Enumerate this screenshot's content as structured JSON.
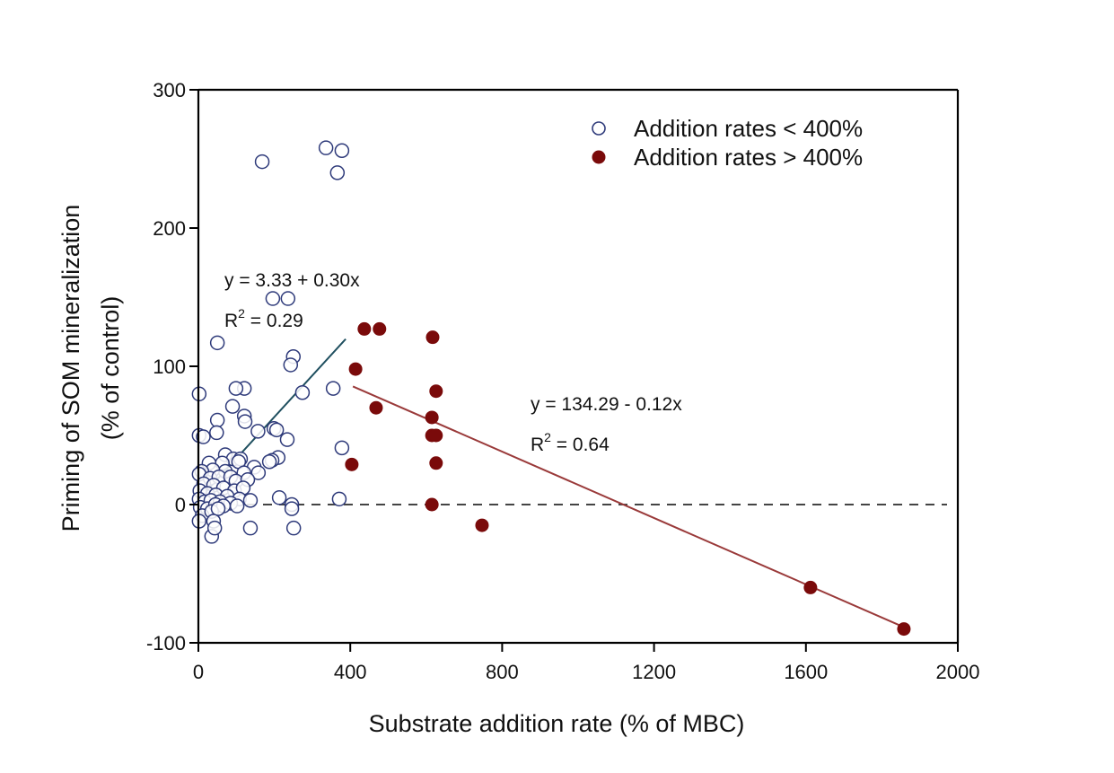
{
  "chart_data": {
    "type": "scatter",
    "title": "",
    "xlabel": "Substrate addition rate (% of MBC)",
    "ylabel_line1": "Priming of SOM mineralization",
    "ylabel_line2": "(% of control)",
    "xlim": [
      0,
      2000
    ],
    "ylim": [
      -100,
      300
    ],
    "xticks": [
      0,
      400,
      800,
      1200,
      1600,
      2000
    ],
    "yticks": [
      -100,
      0,
      100,
      200,
      300
    ],
    "xtick_labels": [
      "0",
      "400",
      "800",
      "1200",
      "1600",
      "2000"
    ],
    "ytick_labels": [
      "-100",
      "0",
      "100",
      "200",
      "300"
    ],
    "grid": false,
    "legend_position": "top-right",
    "reference_line": {
      "y": 0,
      "style": "dashed",
      "color": "#444444"
    },
    "series": [
      {
        "name": "Addition rates < 400%",
        "marker": "open-circle",
        "color": "#2e3a7a",
        "points": [
          [
            168,
            248
          ],
          [
            336,
            258
          ],
          [
            378,
            256
          ],
          [
            366,
            240
          ],
          [
            196,
            149
          ],
          [
            236,
            149
          ],
          [
            50,
            117
          ],
          [
            250,
            107
          ],
          [
            243,
            101
          ],
          [
            121,
            84
          ],
          [
            355,
            84
          ],
          [
            274,
            81
          ],
          [
            2,
            80
          ],
          [
            99,
            84
          ],
          [
            90,
            71
          ],
          [
            121,
            64
          ],
          [
            123,
            60
          ],
          [
            50,
            61
          ],
          [
            199,
            55
          ],
          [
            206,
            54
          ],
          [
            157,
            53
          ],
          [
            48,
            52
          ],
          [
            2,
            50
          ],
          [
            13,
            49
          ],
          [
            234,
            47
          ],
          [
            378,
            41
          ],
          [
            210,
            34
          ],
          [
            194,
            32
          ],
          [
            187,
            31
          ],
          [
            71,
            36
          ],
          [
            92,
            33
          ],
          [
            111,
            33
          ],
          [
            106,
            31
          ],
          [
            63,
            30
          ],
          [
            28,
            30
          ],
          [
            147,
            27
          ],
          [
            158,
            23
          ],
          [
            120,
            23
          ],
          [
            71,
            24
          ],
          [
            38,
            25
          ],
          [
            9,
            24
          ],
          [
            2,
            22
          ],
          [
            31,
            19
          ],
          [
            54,
            20
          ],
          [
            85,
            20
          ],
          [
            99,
            17
          ],
          [
            130,
            18
          ],
          [
            14,
            15
          ],
          [
            40,
            14
          ],
          [
            66,
            12
          ],
          [
            95,
            10
          ],
          [
            118,
            12
          ],
          [
            4,
            10
          ],
          [
            24,
            8
          ],
          [
            46,
            7
          ],
          [
            76,
            6
          ],
          [
            108,
            4
          ],
          [
            137,
            3
          ],
          [
            2,
            4
          ],
          [
            17,
            2
          ],
          [
            33,
            3
          ],
          [
            57,
            2
          ],
          [
            85,
            1
          ],
          [
            213,
            5
          ],
          [
            371,
            4
          ],
          [
            246,
            0
          ],
          [
            5,
            -2
          ],
          [
            24,
            -3
          ],
          [
            45,
            0
          ],
          [
            66,
            -1
          ],
          [
            102,
            -1
          ],
          [
            246,
            -3
          ],
          [
            10,
            -8
          ],
          [
            35,
            -5
          ],
          [
            52,
            -3
          ],
          [
            2,
            -12
          ],
          [
            40,
            -12
          ],
          [
            137,
            -17
          ],
          [
            251,
            -17
          ],
          [
            35,
            -23
          ],
          [
            43,
            -17
          ]
        ]
      },
      {
        "name": "Addition rates > 400%",
        "marker": "filled-circle",
        "color": "#7a0a0a",
        "points": [
          [
            414,
            98
          ],
          [
            437,
            127
          ],
          [
            477,
            127
          ],
          [
            404,
            29
          ],
          [
            468,
            70
          ],
          [
            617,
            121
          ],
          [
            626,
            82
          ],
          [
            615,
            63
          ],
          [
            615,
            50
          ],
          [
            626,
            50
          ],
          [
            626,
            30
          ],
          [
            615,
            0
          ],
          [
            747,
            -15
          ],
          [
            1612,
            -60
          ],
          [
            1858,
            -90
          ]
        ]
      }
    ],
    "regressions": [
      {
        "series": "Addition rates < 400%",
        "intercept": 3.33,
        "slope": 0.3,
        "x_range": [
          0,
          388
        ],
        "color": "#1f4f5f",
        "equation_label": "y = 3.33 + 0.30x",
        "r2_prefix": "R",
        "r2_sup": "2",
        "r2_value": " = 0.29"
      },
      {
        "series": "Addition rates > 400%",
        "intercept": 134.29,
        "slope": -0.12,
        "x_range": [
          407,
          1858
        ],
        "color": "#9a3a3a",
        "equation_label": "y = 134.29 - 0.12x",
        "r2_prefix": "R",
        "r2_sup": "2",
        "r2_value": " = 0.64"
      }
    ],
    "legend": [
      {
        "label": "Addition rates < 400%",
        "marker": "open-circle"
      },
      {
        "label": "Addition rates > 400%",
        "marker": "filled-circle"
      }
    ]
  }
}
